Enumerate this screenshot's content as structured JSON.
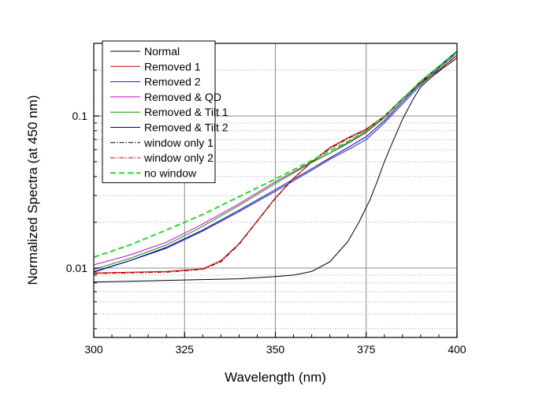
{
  "chart_data": {
    "type": "line",
    "title": "",
    "xlabel": "Wavelength (nm)",
    "ylabel": "Normalized Spectra (at 450 nm)",
    "xlim": [
      300,
      400
    ],
    "ylim": [
      0.0035,
      0.3
    ],
    "yscale": "log",
    "grid": true,
    "legend_position": "top-left",
    "x_ticks": [
      300,
      325,
      350,
      375,
      400
    ],
    "x_tick_labels": [
      "300",
      "325",
      "350",
      "375",
      "400"
    ],
    "y_ticks": [
      0.01,
      0.1
    ],
    "y_tick_labels": [
      "0.01",
      "0.1"
    ],
    "series": [
      {
        "name": "Normal",
        "color": "#000000",
        "dash": "solid",
        "x": [
          300,
          310,
          320,
          330,
          340,
          350,
          355,
          360,
          365,
          370,
          373,
          376,
          378,
          380,
          382,
          385,
          388,
          390,
          393,
          396,
          400
        ],
        "y": [
          0.0081,
          0.0082,
          0.0083,
          0.0084,
          0.0085,
          0.0088,
          0.009,
          0.0095,
          0.011,
          0.015,
          0.02,
          0.028,
          0.037,
          0.05,
          0.065,
          0.095,
          0.13,
          0.155,
          0.18,
          0.205,
          0.24
        ]
      },
      {
        "name": "Removed 1",
        "color": "#d00000",
        "dash": "solid",
        "x": [
          300,
          310,
          320,
          330,
          335,
          340,
          345,
          350,
          355,
          360,
          365,
          370,
          375,
          380,
          385,
          390,
          395,
          400
        ],
        "y": [
          0.0093,
          0.0094,
          0.0095,
          0.0099,
          0.0112,
          0.0145,
          0.0205,
          0.029,
          0.039,
          0.05,
          0.062,
          0.072,
          0.082,
          0.1,
          0.13,
          0.165,
          0.2,
          0.25
        ]
      },
      {
        "name": "Removed 2",
        "color": "#1a1acc",
        "dash": "solid",
        "x": [
          300,
          310,
          320,
          330,
          340,
          350,
          360,
          365,
          370,
          375,
          380,
          385,
          390,
          395,
          400
        ],
        "y": [
          0.0095,
          0.0112,
          0.0135,
          0.0175,
          0.0235,
          0.032,
          0.044,
          0.052,
          0.06,
          0.07,
          0.09,
          0.12,
          0.16,
          0.205,
          0.26
        ]
      },
      {
        "name": "Removed & QD",
        "color": "#cc00cc",
        "dash": "solid",
        "x": [
          300,
          310,
          320,
          330,
          340,
          350,
          360,
          365,
          370,
          375,
          380,
          385,
          390,
          395,
          400
        ],
        "y": [
          0.0105,
          0.0122,
          0.0148,
          0.0195,
          0.0265,
          0.037,
          0.05,
          0.057,
          0.066,
          0.078,
          0.097,
          0.128,
          0.168,
          0.21,
          0.265
        ]
      },
      {
        "name": "Removed & Tilt 1",
        "color": "#009900",
        "dash": "solid",
        "x": [
          300,
          310,
          320,
          330,
          340,
          350,
          360,
          365,
          370,
          375,
          380,
          385,
          390,
          395,
          400
        ],
        "y": [
          0.0098,
          0.0116,
          0.0142,
          0.0188,
          0.0258,
          0.036,
          0.0495,
          0.057,
          0.067,
          0.079,
          0.098,
          0.129,
          0.17,
          0.212,
          0.268
        ]
      },
      {
        "name": "Removed & Tilt 2",
        "color": "#00008b",
        "dash": "solid",
        "x": [
          300,
          310,
          320,
          330,
          340,
          350,
          360,
          365,
          370,
          375,
          380,
          385,
          390,
          395,
          400
        ],
        "y": [
          0.0094,
          0.0112,
          0.0137,
          0.0178,
          0.024,
          0.0328,
          0.045,
          0.053,
          0.062,
          0.073,
          0.093,
          0.124,
          0.165,
          0.21,
          0.266
        ]
      },
      {
        "name": "window only 1",
        "color": "#000000",
        "dash": "dashdot",
        "x": [
          300,
          310,
          320,
          330,
          335,
          340,
          345,
          350,
          355,
          360,
          365,
          370,
          375,
          380,
          385,
          390,
          395,
          400
        ],
        "y": [
          0.0092,
          0.0093,
          0.0094,
          0.0098,
          0.011,
          0.0143,
          0.0203,
          0.0287,
          0.0388,
          0.0498,
          0.061,
          0.071,
          0.081,
          0.099,
          0.129,
          0.164,
          0.2,
          0.25
        ]
      },
      {
        "name": "window only 2",
        "color": "#d00000",
        "dash": "dashdot",
        "x": [
          300,
          310,
          320,
          330,
          335,
          340,
          345,
          350,
          355,
          360,
          365,
          370,
          375,
          380,
          385,
          390,
          395,
          400
        ],
        "y": [
          0.0092,
          0.0093,
          0.0094,
          0.0098,
          0.0111,
          0.0144,
          0.0204,
          0.0288,
          0.0389,
          0.0499,
          0.0615,
          0.0715,
          0.0815,
          0.0995,
          0.13,
          0.165,
          0.2,
          0.252
        ]
      },
      {
        "name": "no window",
        "color": "#22dd22",
        "dash": "dashed",
        "x": [
          300,
          310,
          320,
          330,
          340,
          350,
          360,
          365,
          370,
          375,
          380,
          385,
          390,
          395,
          400
        ],
        "y": [
          0.0118,
          0.0142,
          0.0178,
          0.0225,
          0.0295,
          0.0385,
          0.051,
          0.059,
          0.068,
          0.08,
          0.099,
          0.13,
          0.168,
          0.208,
          0.262
        ]
      }
    ]
  }
}
